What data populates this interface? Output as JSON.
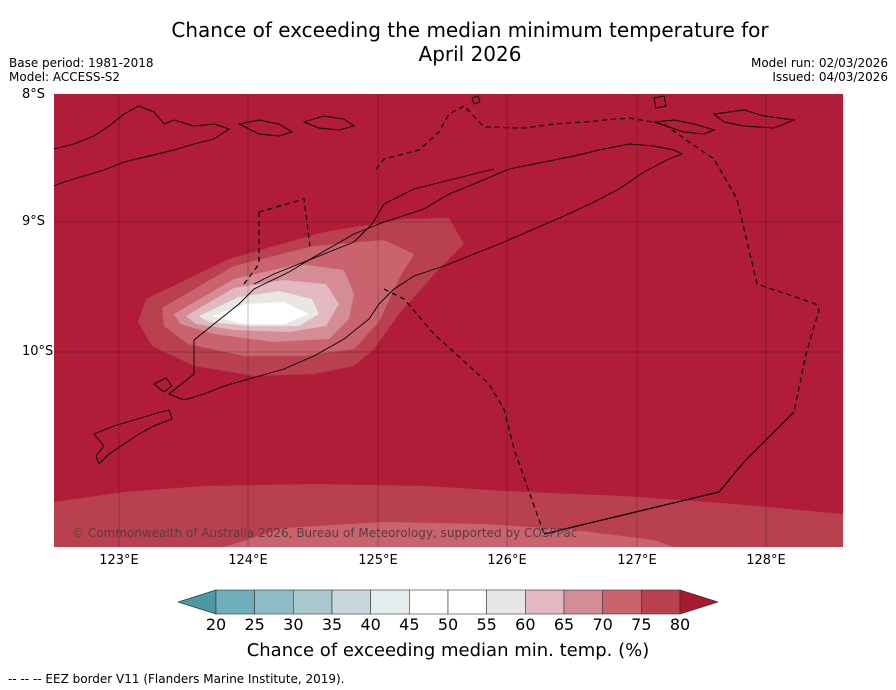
{
  "title": {
    "line1": "Chance of exceeding the median minimum temperature for",
    "line2": "April 2026"
  },
  "meta": {
    "base_period": "Base period: 1981-2018",
    "model": "Model: ACCESS-S2",
    "model_run": "Model run: 02/03/2026",
    "issued": "Issued: 04/03/2026"
  },
  "map": {
    "latitude_labels": [
      "8°S",
      "9°S",
      "10°S"
    ],
    "longitude_labels": [
      "123°E",
      "124°E",
      "125°E",
      "126°E",
      "127°E",
      "128°E"
    ],
    "copyright": "© Commonwealth of Australia 2026, Bureau of Meteorology, supported by COSPPac",
    "background_color": "#b11d38"
  },
  "colorbar": {
    "ticks": [
      "20",
      "25",
      "30",
      "35",
      "40",
      "45",
      "50",
      "55",
      "60",
      "65",
      "70",
      "75",
      "80"
    ],
    "colors": [
      "#4e98a6",
      "#6eafbb",
      "#8fbdc6",
      "#a9c9ce",
      "#c9d8da",
      "#e6edef",
      "#ffffff",
      "#ffffff",
      "#e9e6e6",
      "#e2b9c0",
      "#d48c95",
      "#c9636e",
      "#b9414f",
      "#a8182e"
    ],
    "label": "Chance of exceeding median min. temp. (%)"
  },
  "footnote": "--  --  -- EEZ border V11 (Flanders Marine Institute, 2019)."
}
